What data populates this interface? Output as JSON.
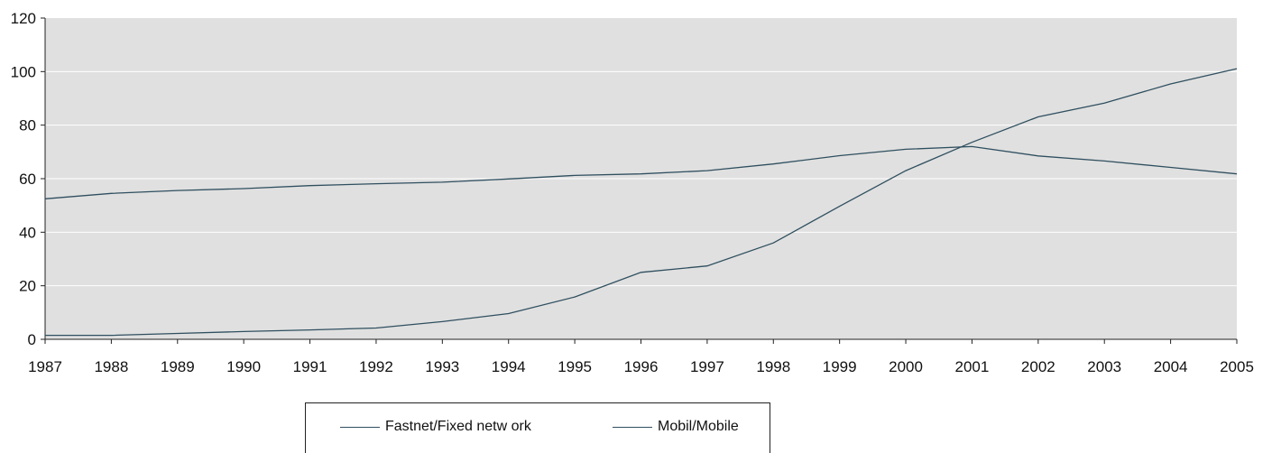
{
  "chart_data": {
    "type": "line",
    "categories": [
      "1987",
      "1988",
      "1989",
      "1990",
      "1991",
      "1992",
      "1993",
      "1994",
      "1995",
      "1996",
      "1997",
      "1998",
      "1999",
      "2000",
      "2001",
      "2002",
      "2003",
      "2004",
      "2005"
    ],
    "series": [
      {
        "name": "Fastnet/Fixed netw ork",
        "color": "#2f4f5f",
        "values": [
          52.5,
          54.5,
          55.6,
          56.3,
          57.4,
          58.1,
          58.7,
          59.9,
          61.2,
          61.8,
          63.0,
          65.5,
          68.6,
          71.0,
          72.0,
          68.5,
          66.6,
          64.2,
          61.8
        ]
      },
      {
        "name": "Mobil/Mobile",
        "color": "#2f4f5f",
        "values": [
          1.5,
          1.5,
          2.2,
          2.9,
          3.5,
          4.2,
          6.6,
          9.6,
          15.8,
          25.0,
          27.4,
          36.0,
          49.7,
          63.0,
          73.6,
          83.1,
          88.2,
          95.4,
          101.1
        ]
      }
    ],
    "y_ticks": [
      "0",
      "20",
      "40",
      "60",
      "80",
      "100",
      "120"
    ],
    "ylim": [
      0,
      120
    ],
    "grid": true,
    "legend_position": "bottom",
    "colors": {
      "plot_background": "#e0e0e0",
      "gridline": "#ffffff",
      "line": "#2f4f5f"
    }
  }
}
